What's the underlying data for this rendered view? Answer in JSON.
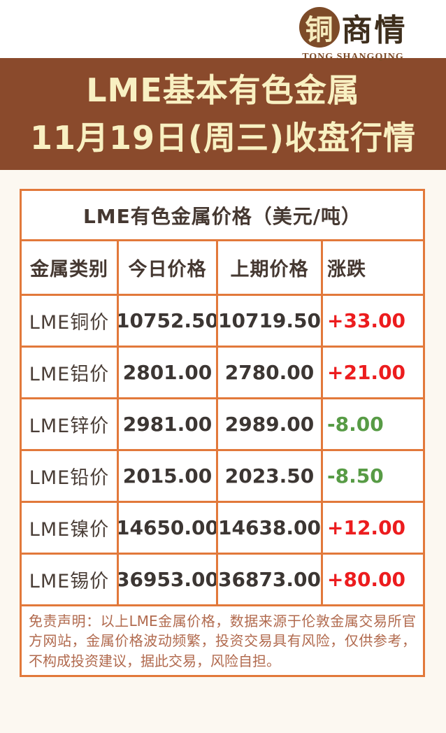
{
  "logo": {
    "circle_char": "铜",
    "brand_chars": "商情",
    "romanized": "TONG SHANGQING"
  },
  "banner": {
    "line1": "LME基本有色金属",
    "line2": "11月19日(周三)收盘行情",
    "bg_color": "#8a4a2c",
    "text_color": "#f8f0c2"
  },
  "table": {
    "title": "LME有色金属价格（美元/吨）",
    "columns": [
      "金属类别",
      "今日价格",
      "上期价格",
      "涨跌"
    ],
    "rows": [
      {
        "metal": "LME铜价",
        "today": "10752.50",
        "previous": "10719.50",
        "change": "+33.00",
        "direction": "up"
      },
      {
        "metal": "LME铝价",
        "today": "2801.00",
        "previous": "2780.00",
        "change": "+21.00",
        "direction": "up"
      },
      {
        "metal": "LME锌价",
        "today": "2981.00",
        "previous": "2989.00",
        "change": "-8.00",
        "direction": "down"
      },
      {
        "metal": "LME铅价",
        "today": "2015.00",
        "previous": "2023.50",
        "change": "-8.50",
        "direction": "down"
      },
      {
        "metal": "LME镍价",
        "today": "14650.00",
        "previous": "14638.00",
        "change": "+12.00",
        "direction": "up"
      },
      {
        "metal": "LME锡价",
        "today": "36953.00",
        "previous": "36873.00",
        "change": "+80.00",
        "direction": "up"
      }
    ],
    "up_color": "#ec1c1e",
    "down_color": "#579b45",
    "border_color": "#e2793b"
  },
  "disclaimer": {
    "text": "免责声明：以上LME金属价格，数据来源于伦敦金属交易所官方网站，金属价格波动频繁，投资交易具有风险，仅供参考，不构成投资建议，据此交易，风险自担。"
  },
  "chart_data": {
    "type": "table",
    "title": "LME有色金属价格（美元/吨）",
    "columns": [
      "金属类别",
      "今日价格",
      "上期价格",
      "涨跌"
    ],
    "rows": [
      [
        "LME铜价",
        10752.5,
        10719.5,
        33.0
      ],
      [
        "LME铝价",
        2801.0,
        2780.0,
        21.0
      ],
      [
        "LME锌价",
        2981.0,
        2989.0,
        -8.0
      ],
      [
        "LME铅价",
        2015.0,
        2023.5,
        -8.5
      ],
      [
        "LME镍价",
        14650.0,
        14638.0,
        12.0
      ],
      [
        "LME锡价",
        36953.0,
        36873.0,
        80.0
      ]
    ]
  }
}
